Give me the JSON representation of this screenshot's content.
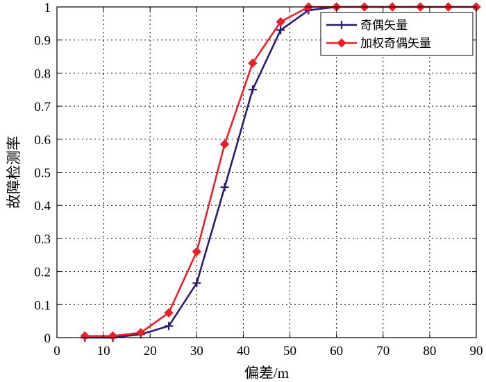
{
  "chart_data": {
    "type": "line",
    "title": "",
    "xlabel": "偏差/m",
    "ylabel": "故障检测率",
    "xlim": [
      0,
      90
    ],
    "ylim": [
      0,
      1
    ],
    "xticks": [
      0,
      10,
      20,
      30,
      40,
      50,
      60,
      70,
      80,
      90
    ],
    "yticks": [
      0,
      0.1,
      0.2,
      0.3,
      0.4,
      0.5,
      0.6,
      0.7,
      0.8,
      0.9,
      1
    ],
    "xtick_labels": [
      "0",
      "10",
      "20",
      "30",
      "40",
      "50",
      "60",
      "70",
      "80",
      "90"
    ],
    "ytick_labels": [
      "0",
      "0.1",
      "0.2",
      "0.3",
      "0.4",
      "0.5",
      "0.6",
      "0.7",
      "0.8",
      "0.9",
      "1"
    ],
    "grid": true,
    "legend_position": "top-right",
    "series": [
      {
        "name": "奇偶矢量",
        "color": "#2e1a6e",
        "marker": "plus",
        "x": [
          6,
          12,
          18,
          24,
          30,
          36,
          42,
          48,
          54,
          60,
          66,
          72,
          78,
          84,
          90
        ],
        "y": [
          0,
          0,
          0.01,
          0.035,
          0.165,
          0.455,
          0.75,
          0.93,
          0.99,
          1,
          1,
          1,
          1,
          1,
          1
        ]
      },
      {
        "name": "加权奇偶矢量",
        "color": "#e8202a",
        "marker": "diamond",
        "x": [
          6,
          12,
          18,
          24,
          30,
          36,
          42,
          48,
          54,
          60,
          66,
          72,
          78,
          84,
          90
        ],
        "y": [
          0.005,
          0.005,
          0.015,
          0.075,
          0.26,
          0.585,
          0.83,
          0.955,
          1,
          1,
          1,
          1,
          1,
          1,
          1
        ]
      }
    ]
  }
}
